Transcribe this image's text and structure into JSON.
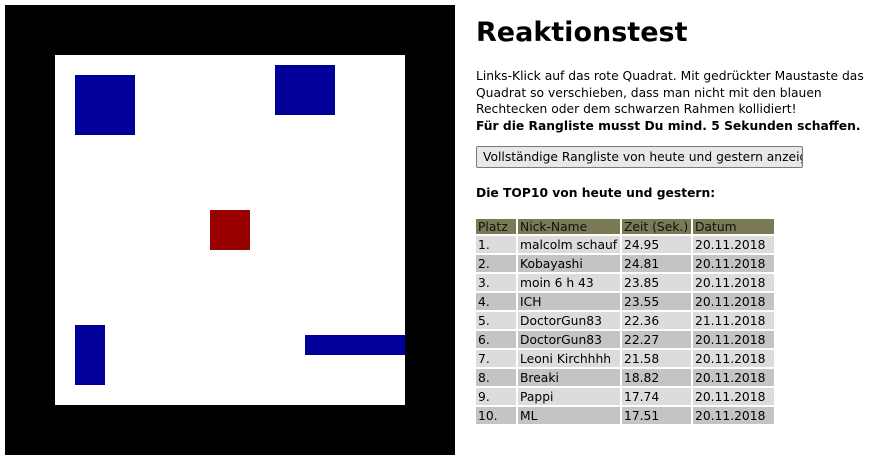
{
  "title": "Reaktionstest",
  "intro": {
    "text": "Links-Klick auf das rote Quadrat.  Mit gedrückter Maustaste das Quadrat so verschieben, dass man nicht mit den blauen Rechtecken oder dem schwarzen Rahmen kollidiert!",
    "bold_text": "Für die Rangliste musst Du mind. 5 Sekunden schaffen."
  },
  "ranking_button_label": "Vollständige Rangliste von heute und gestern anzeigen",
  "top10_heading": "Die TOP10 von heute und gestern:",
  "colors": {
    "frame": "#000000",
    "field": "#ffffff",
    "obstacle": "#000099",
    "player": "#990000",
    "table_header": "#7a7a55"
  },
  "table": {
    "headers": [
      "Platz",
      "Nick-Name",
      "Zeit (Sek.)",
      "Datum"
    ],
    "rows": [
      [
        "1.",
        "malcolm schauf",
        "24.95",
        "20.11.2018"
      ],
      [
        "2.",
        "Kobayashi",
        "24.81",
        "20.11.2018"
      ],
      [
        "3.",
        "moin 6 h 43",
        "23.85",
        "20.11.2018"
      ],
      [
        "4.",
        "ICH",
        "23.55",
        "20.11.2018"
      ],
      [
        "5.",
        "DoctorGun83",
        "22.36",
        "21.11.2018"
      ],
      [
        "6.",
        "DoctorGun83",
        "22.27",
        "20.11.2018"
      ],
      [
        "7.",
        "Leoni Kirchhhh",
        "21.58",
        "20.11.2018"
      ],
      [
        "8.",
        "Breaki",
        "18.82",
        "20.11.2018"
      ],
      [
        "9.",
        "Pappi",
        "17.74",
        "20.11.2018"
      ],
      [
        "10.",
        "ML",
        "17.51",
        "20.11.2018"
      ]
    ]
  }
}
